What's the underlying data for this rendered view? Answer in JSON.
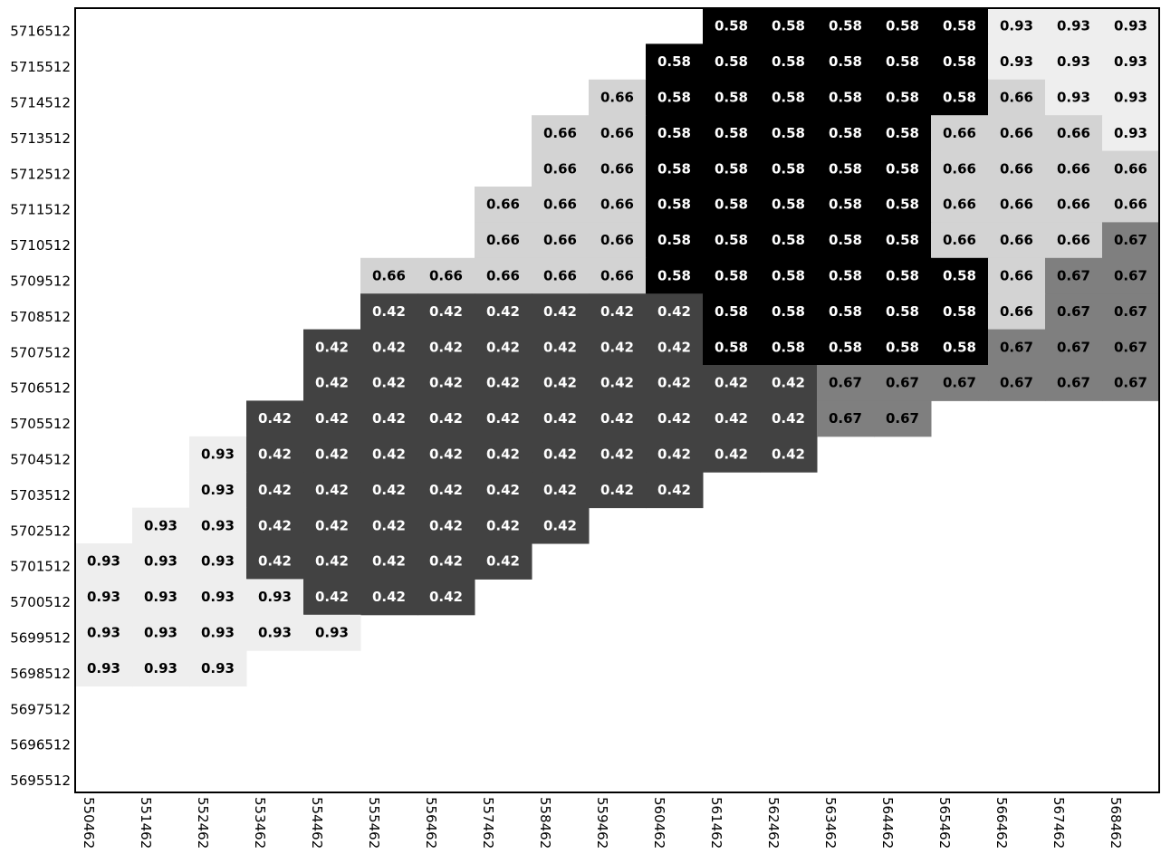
{
  "chart_data": {
    "type": "heatmap",
    "title": "",
    "xlabel": "",
    "ylabel": "",
    "grid": false,
    "x_categories": [
      "550462",
      "551462",
      "552462",
      "553462",
      "554462",
      "555462",
      "556462",
      "557462",
      "558462",
      "559462",
      "560462",
      "561462",
      "562462",
      "563462",
      "564462",
      "565462",
      "566462",
      "567462",
      "568462"
    ],
    "y_categories": [
      "5716512",
      "5715512",
      "5714512",
      "5713512",
      "5712512",
      "5711512",
      "5710512",
      "5709512",
      "5708512",
      "5707512",
      "5706512",
      "5705512",
      "5704512",
      "5703512",
      "5702512",
      "5701512",
      "5700512",
      "5699512",
      "5698512",
      "5697512",
      "5696512",
      "5695512"
    ],
    "values": [
      [
        null,
        null,
        null,
        null,
        null,
        null,
        null,
        null,
        null,
        null,
        null,
        0.58,
        0.58,
        0.58,
        0.58,
        0.58,
        0.93,
        0.93,
        0.93
      ],
      [
        null,
        null,
        null,
        null,
        null,
        null,
        null,
        null,
        null,
        null,
        0.58,
        0.58,
        0.58,
        0.58,
        0.58,
        0.58,
        0.93,
        0.93,
        0.93
      ],
      [
        null,
        null,
        null,
        null,
        null,
        null,
        null,
        null,
        null,
        0.66,
        0.58,
        0.58,
        0.58,
        0.58,
        0.58,
        0.58,
        0.66,
        0.93,
        0.93
      ],
      [
        null,
        null,
        null,
        null,
        null,
        null,
        null,
        null,
        0.66,
        0.66,
        0.58,
        0.58,
        0.58,
        0.58,
        0.58,
        0.66,
        0.66,
        0.66,
        0.93
      ],
      [
        null,
        null,
        null,
        null,
        null,
        null,
        null,
        null,
        0.66,
        0.66,
        0.58,
        0.58,
        0.58,
        0.58,
        0.58,
        0.66,
        0.66,
        0.66,
        0.66
      ],
      [
        null,
        null,
        null,
        null,
        null,
        null,
        null,
        0.66,
        0.66,
        0.66,
        0.58,
        0.58,
        0.58,
        0.58,
        0.58,
        0.66,
        0.66,
        0.66,
        0.66
      ],
      [
        null,
        null,
        null,
        null,
        null,
        null,
        null,
        0.66,
        0.66,
        0.66,
        0.58,
        0.58,
        0.58,
        0.58,
        0.58,
        0.66,
        0.66,
        0.66,
        0.67
      ],
      [
        null,
        null,
        null,
        null,
        null,
        0.66,
        0.66,
        0.66,
        0.66,
        0.66,
        0.58,
        0.58,
        0.58,
        0.58,
        0.58,
        0.58,
        0.66,
        0.67,
        0.67
      ],
      [
        null,
        null,
        null,
        null,
        null,
        0.42,
        0.42,
        0.42,
        0.42,
        0.42,
        0.42,
        0.58,
        0.58,
        0.58,
        0.58,
        0.58,
        0.66,
        0.67,
        0.67
      ],
      [
        null,
        null,
        null,
        null,
        0.42,
        0.42,
        0.42,
        0.42,
        0.42,
        0.42,
        0.42,
        0.58,
        0.58,
        0.58,
        0.58,
        0.58,
        0.67,
        0.67,
        0.67
      ],
      [
        null,
        null,
        null,
        null,
        0.42,
        0.42,
        0.42,
        0.42,
        0.42,
        0.42,
        0.42,
        0.42,
        0.42,
        0.67,
        0.67,
        0.67,
        0.67,
        0.67,
        0.67
      ],
      [
        null,
        null,
        null,
        0.42,
        0.42,
        0.42,
        0.42,
        0.42,
        0.42,
        0.42,
        0.42,
        0.42,
        0.42,
        0.67,
        0.67,
        null,
        null,
        null,
        null
      ],
      [
        null,
        null,
        0.93,
        0.42,
        0.42,
        0.42,
        0.42,
        0.42,
        0.42,
        0.42,
        0.42,
        0.42,
        0.42,
        null,
        null,
        null,
        null,
        null,
        null
      ],
      [
        null,
        null,
        0.93,
        0.42,
        0.42,
        0.42,
        0.42,
        0.42,
        0.42,
        0.42,
        0.42,
        null,
        null,
        null,
        null,
        null,
        null,
        null,
        null
      ],
      [
        null,
        0.93,
        0.93,
        0.42,
        0.42,
        0.42,
        0.42,
        0.42,
        0.42,
        null,
        null,
        null,
        null,
        null,
        null,
        null,
        null,
        null,
        null
      ],
      [
        0.93,
        0.93,
        0.93,
        0.42,
        0.42,
        0.42,
        0.42,
        0.42,
        null,
        null,
        null,
        null,
        null,
        null,
        null,
        null,
        null,
        null,
        null
      ],
      [
        0.93,
        0.93,
        0.93,
        0.93,
        0.42,
        0.42,
        0.42,
        null,
        null,
        null,
        null,
        null,
        null,
        null,
        null,
        null,
        null,
        null,
        null
      ],
      [
        0.93,
        0.93,
        0.93,
        0.93,
        0.93,
        null,
        null,
        null,
        null,
        null,
        null,
        null,
        null,
        null,
        null,
        null,
        null,
        null,
        null
      ],
      [
        0.93,
        0.93,
        0.93,
        null,
        null,
        null,
        null,
        null,
        null,
        null,
        null,
        null,
        null,
        null,
        null,
        null,
        null,
        null,
        null
      ],
      [
        null,
        null,
        null,
        null,
        null,
        null,
        null,
        null,
        null,
        null,
        null,
        null,
        null,
        null,
        null,
        null,
        null,
        null,
        null
      ],
      [
        null,
        null,
        null,
        null,
        null,
        null,
        null,
        null,
        null,
        null,
        null,
        null,
        null,
        null,
        null,
        null,
        null,
        null,
        null
      ],
      [
        null,
        null,
        null,
        null,
        null,
        null,
        null,
        null,
        null,
        null,
        null,
        null,
        null,
        null,
        null,
        null,
        null,
        null,
        null
      ]
    ],
    "value_colors": {
      "0.42": "#424242",
      "0.58": "#000000",
      "0.66": "#d3d3d3",
      "0.67": "#7f7f7f",
      "0.93": "#eeeeee"
    },
    "label_colors": {
      "0.42": "#ffffff",
      "0.58": "#ffffff",
      "0.66": "#000000",
      "0.67": "#000000",
      "0.93": "#000000"
    }
  }
}
